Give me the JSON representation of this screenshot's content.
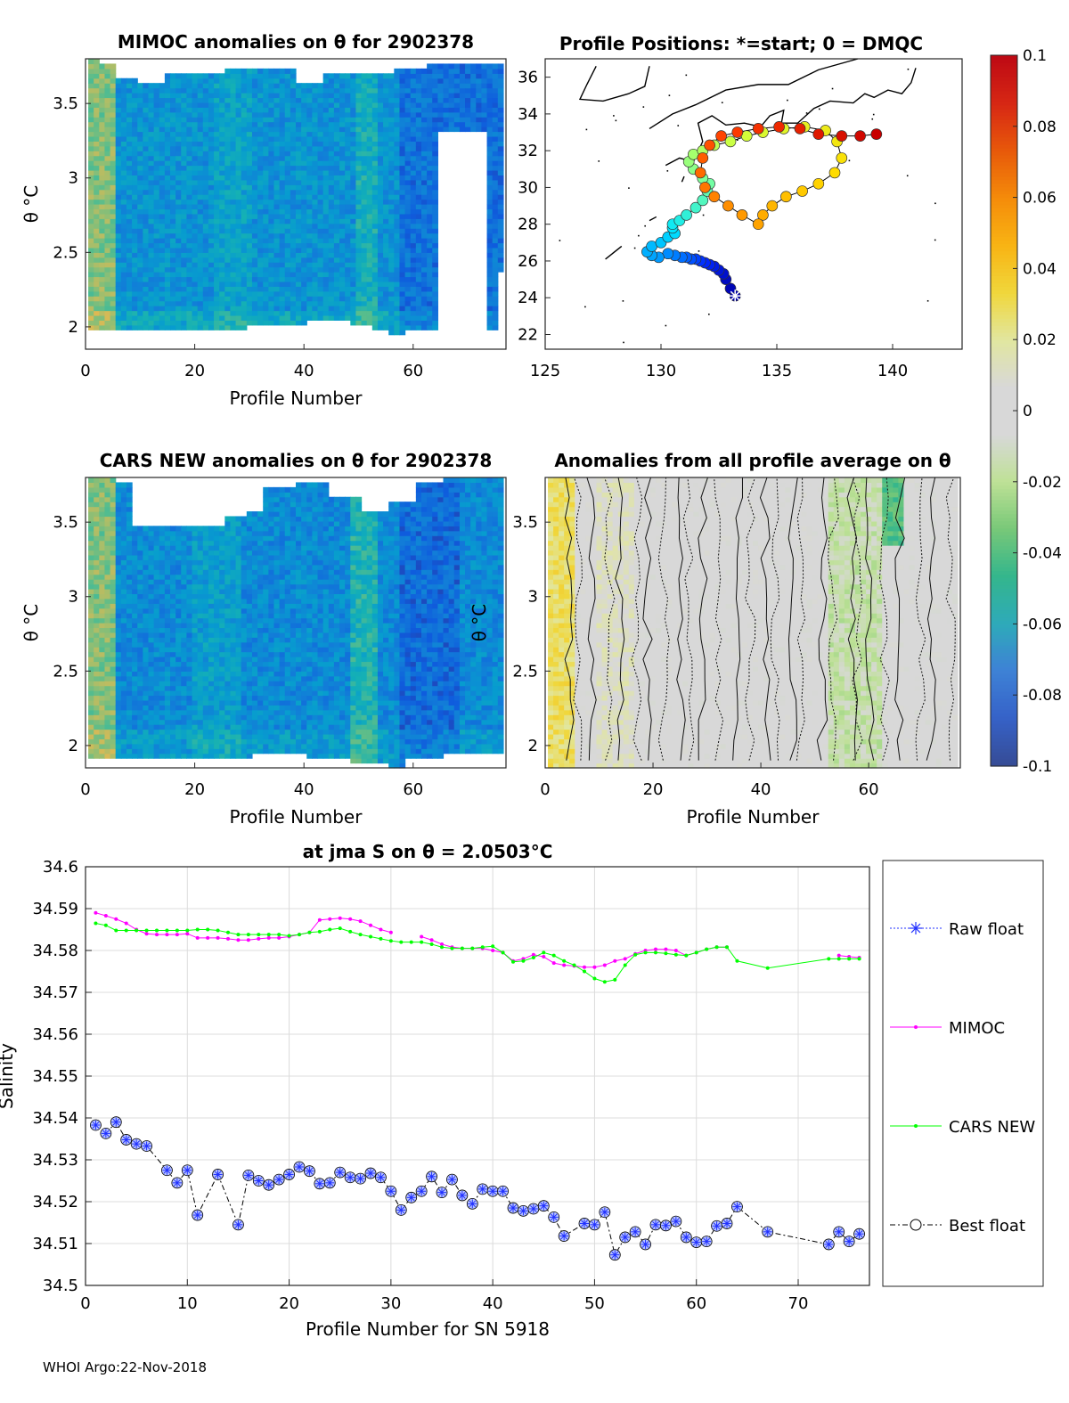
{
  "footer": "WHOI Argo:22-Nov-2018",
  "colorbar": {
    "min": -0.1,
    "max": 0.1,
    "ticks": [
      "0.1",
      "0.08",
      "0.06",
      "0.04",
      "0.02",
      "0",
      "-0.02",
      "-0.04",
      "-0.06",
      "-0.08",
      "-0.1"
    ]
  },
  "panels": {
    "mimoc": {
      "title": "MIMOC anomalies on θ  for 2902378",
      "xlabel": "Profile Number",
      "ylabel": "θ °C",
      "xticks": [
        "0",
        "20",
        "40",
        "60"
      ],
      "yticks": [
        "3.5",
        "3",
        "2.5",
        "2"
      ]
    },
    "map": {
      "title": "Profile Positions: *=start; 0 = DMQC",
      "xticks": [
        "125",
        "130",
        "135",
        "140"
      ],
      "yticks": [
        "36",
        "34",
        "32",
        "30",
        "28",
        "26",
        "24",
        "22"
      ]
    },
    "cars": {
      "title": "CARS NEW anomalies on θ for 2902378",
      "xlabel": "Profile Number",
      "ylabel": "θ °C",
      "xticks": [
        "0",
        "20",
        "40",
        "60"
      ],
      "yticks": [
        "3.5",
        "3",
        "2.5",
        "2"
      ]
    },
    "avg": {
      "title": "Anomalies from all profile average on θ",
      "xlabel": "Profile Number",
      "ylabel": "θ °C",
      "xticks": [
        "0",
        "20",
        "40",
        "60"
      ],
      "yticks": [
        "3.5",
        "3",
        "2.5",
        "2"
      ]
    }
  },
  "chart_data": {
    "type": "line",
    "title": "at jma S on θ = 2.0503°C",
    "xlabel": "Profile Number for SN 5918",
    "ylabel": "Salinity",
    "xlim": [
      0,
      77
    ],
    "ylim": [
      34.5,
      34.6
    ],
    "xticks": [
      "0",
      "10",
      "20",
      "30",
      "40",
      "50",
      "60",
      "70"
    ],
    "yticks": [
      "34.6",
      "34.59",
      "34.58",
      "34.57",
      "34.56",
      "34.55",
      "34.54",
      "34.53",
      "34.52",
      "34.51",
      "34.5"
    ],
    "grid": true,
    "legend": [
      "Raw float",
      "MIMOC",
      "CARS NEW",
      "Best float"
    ],
    "series": [
      {
        "name": "MIMOC",
        "color": "#ff00ff",
        "x": [
          1,
          2,
          3,
          4,
          5,
          6,
          7,
          8,
          9,
          10,
          11,
          12,
          13,
          14,
          15,
          16,
          17,
          18,
          19,
          20,
          21,
          22,
          23,
          24,
          25,
          26,
          27,
          28,
          29,
          30,
          null,
          33,
          34,
          35,
          36,
          37,
          38,
          39,
          40,
          41,
          42,
          43,
          44,
          45,
          46,
          47,
          48,
          49,
          50,
          51,
          52,
          53,
          54,
          55,
          56,
          57,
          58,
          59,
          60,
          61,
          62,
          63,
          null,
          74,
          75,
          76
        ],
        "y": [
          34.589,
          34.5883,
          34.5875,
          34.5865,
          34.585,
          34.584,
          34.5838,
          34.5838,
          34.5838,
          34.584,
          34.583,
          34.583,
          34.583,
          34.5828,
          34.5825,
          34.5825,
          34.5828,
          34.583,
          34.583,
          34.5833,
          34.5838,
          34.5843,
          34.5873,
          34.5875,
          34.5877,
          34.5875,
          34.587,
          34.586,
          34.585,
          34.5843,
          null,
          34.5833,
          34.5825,
          34.5815,
          34.5808,
          34.5805,
          34.5805,
          34.5805,
          34.58,
          34.5795,
          34.5775,
          34.578,
          34.579,
          34.5785,
          34.577,
          34.5765,
          34.5763,
          34.576,
          34.576,
          34.5765,
          34.5775,
          34.578,
          34.5792,
          34.58,
          34.5803,
          34.5803,
          34.58,
          34.5788,
          34.5795,
          34.5803,
          34.5808,
          34.5808,
          null,
          34.5788,
          34.5785,
          34.5783
        ]
      },
      {
        "name": "CARS NEW",
        "color": "#00ff00",
        "x": [
          1,
          2,
          3,
          4,
          5,
          6,
          7,
          8,
          9,
          10,
          11,
          12,
          13,
          14,
          15,
          16,
          17,
          18,
          19,
          20,
          21,
          22,
          23,
          24,
          25,
          26,
          27,
          28,
          29,
          30,
          31,
          32,
          33,
          34,
          35,
          36,
          37,
          38,
          39,
          40,
          41,
          42,
          43,
          44,
          45,
          46,
          47,
          48,
          49,
          50,
          51,
          52,
          53,
          54,
          55,
          56,
          57,
          58,
          59,
          60,
          61,
          62,
          63,
          64,
          67,
          73,
          74,
          75,
          76
        ],
        "y": [
          34.5865,
          34.586,
          34.5848,
          34.5848,
          34.5848,
          34.5848,
          34.5848,
          34.5848,
          34.5848,
          34.5848,
          34.585,
          34.585,
          34.5848,
          34.5843,
          34.5838,
          34.5838,
          34.5838,
          34.5838,
          34.5838,
          34.5835,
          34.5838,
          34.5843,
          34.5845,
          34.585,
          34.5853,
          34.5845,
          34.5838,
          34.5833,
          34.5828,
          34.5823,
          34.582,
          34.582,
          34.582,
          34.5815,
          34.5808,
          34.5805,
          34.5805,
          34.5805,
          34.5808,
          34.581,
          34.5795,
          34.5773,
          34.5775,
          34.5783,
          34.5795,
          34.5788,
          34.5775,
          34.5765,
          34.575,
          34.5733,
          34.5725,
          34.573,
          34.5765,
          34.579,
          34.5795,
          34.5795,
          34.5793,
          34.579,
          34.5788,
          34.5795,
          34.5803,
          34.5808,
          34.5808,
          34.5775,
          34.5758,
          34.578,
          34.578,
          34.578,
          34.578
        ]
      },
      {
        "name": "Best float",
        "color": "#000000",
        "x": [
          1,
          2,
          3,
          4,
          5,
          6,
          8,
          9,
          10,
          11,
          13,
          15,
          16,
          17,
          18,
          19,
          20,
          21,
          22,
          23,
          24,
          25,
          26,
          27,
          28,
          29,
          30,
          31,
          32,
          33,
          34,
          35,
          36,
          37,
          38,
          39,
          40,
          41,
          42,
          43,
          44,
          45,
          46,
          47,
          49,
          50,
          51,
          52,
          53,
          54,
          55,
          56,
          57,
          58,
          59,
          60,
          61,
          62,
          63,
          64,
          67,
          73,
          74,
          75,
          76
        ],
        "y": [
          34.5383,
          34.5363,
          34.539,
          34.5348,
          34.5338,
          34.5333,
          34.5275,
          34.5245,
          34.5275,
          34.5168,
          34.5265,
          34.5145,
          34.5263,
          34.525,
          34.524,
          34.5253,
          34.5265,
          34.5283,
          34.5273,
          34.5243,
          34.5245,
          34.527,
          34.5258,
          34.5255,
          34.5268,
          34.5258,
          34.5225,
          34.518,
          34.521,
          34.5225,
          34.526,
          34.5222,
          34.5253,
          34.5215,
          34.5195,
          34.523,
          34.5225,
          34.5225,
          34.5185,
          34.5178,
          34.5183,
          34.519,
          34.5163,
          34.5118,
          34.5148,
          34.5145,
          34.5175,
          34.5073,
          34.5115,
          34.5128,
          34.5098,
          34.5145,
          34.5143,
          34.5153,
          34.5115,
          34.5103,
          34.5105,
          34.5142,
          34.5148,
          34.5188,
          34.5128,
          34.5098,
          34.5128,
          34.5105,
          34.5123
        ]
      }
    ]
  },
  "track": {
    "lon": [
      133.2,
      133.0,
      132.8,
      132.7,
      132.5,
      132.3,
      132.1,
      131.9,
      131.7,
      131.5,
      131.3,
      131.1,
      130.9,
      130.6,
      130.3,
      129.9,
      129.6,
      129.4,
      129.6,
      130.0,
      130.3,
      130.6,
      130.5,
      130.5,
      130.8,
      131.1,
      131.5,
      131.8,
      132.0,
      132.1,
      131.8,
      131.4,
      131.2,
      131.4,
      131.8,
      132.3,
      133.0,
      133.7,
      134.4,
      135.3,
      136.2,
      137.1,
      137.6,
      137.8,
      137.5,
      136.8,
      136.1,
      135.4,
      134.8,
      134.4,
      134.2,
      133.5,
      132.9,
      132.3,
      131.9,
      131.7,
      131.8,
      132.1,
      132.6,
      133.3,
      134.2,
      135.1,
      136.0,
      136.8,
      137.8,
      138.6,
      139.3
    ],
    "lat": [
      24.1,
      24.5,
      25.0,
      25.3,
      25.5,
      25.7,
      25.8,
      25.9,
      26.0,
      26.1,
      26.1,
      26.2,
      26.2,
      26.3,
      26.4,
      26.2,
      26.3,
      26.5,
      26.8,
      27.0,
      27.3,
      27.5,
      27.8,
      28.0,
      28.2,
      28.5,
      28.9,
      29.3,
      29.8,
      30.2,
      30.5,
      31.0,
      31.4,
      31.8,
      32.0,
      32.3,
      32.5,
      32.8,
      33.0,
      33.2,
      33.3,
      33.1,
      32.5,
      31.6,
      30.8,
      30.2,
      29.8,
      29.5,
      29.0,
      28.5,
      28.0,
      28.5,
      29.0,
      29.5,
      30.0,
      30.8,
      31.6,
      32.3,
      32.8,
      33.0,
      33.2,
      33.3,
      33.2,
      32.9,
      32.8,
      32.8,
      32.9
    ]
  }
}
